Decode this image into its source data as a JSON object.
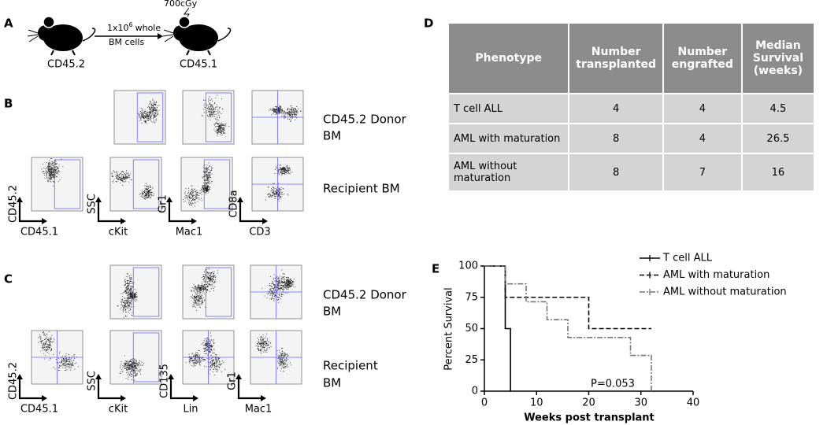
{
  "panel_a": {
    "label": "A",
    "donor": "CD45.2",
    "recipient": "CD45.1",
    "dose_base": "1x10",
    "dose_exp": "6",
    "dose_rest": "whole",
    "dose_line2": "BM cells",
    "irradiation": "700cGy"
  },
  "panel_b": {
    "label": "B",
    "donor_label": [
      "CD45.2 Donor",
      "BM"
    ],
    "recipient_label": "Recipient BM",
    "plots": [
      {
        "y": "CD45.2",
        "x": "CD45.1"
      },
      {
        "y": "SSC",
        "x": "cKit"
      },
      {
        "y": "Gr1",
        "x": "Mac1"
      },
      {
        "y": "CD8a",
        "x": "CD3"
      }
    ]
  },
  "panel_c": {
    "label": "C",
    "donor_label": [
      "CD45.2 Donor",
      "BM"
    ],
    "recipient_label": [
      "Recipient",
      "BM"
    ],
    "plots": [
      {
        "y": "CD45.2",
        "x": "CD45.1"
      },
      {
        "y": "SSC",
        "x": "cKit"
      },
      {
        "y": "CD135",
        "x": "Lin"
      },
      {
        "y": "Gr1",
        "x": "Mac1"
      }
    ]
  },
  "panel_d": {
    "label": "D",
    "table": {
      "header": [
        "Phenotype",
        "Number transplanted",
        "Number engrafted",
        "Median Survival (weeks)"
      ],
      "rows": [
        [
          "T cell ALL",
          "4",
          "4",
          "4.5"
        ],
        [
          "AML with maturation",
          "8",
          "4",
          "26.5"
        ],
        [
          "AML without maturation",
          "8",
          "7",
          "16"
        ]
      ]
    }
  },
  "chart_data": {
    "type": "survival",
    "panel_label": "E",
    "ylabel": "Percent Survival",
    "xlabel": "Weeks post transplant",
    "annotation": "P=0.053",
    "xlim": [
      0,
      40
    ],
    "ylim": [
      0,
      100
    ],
    "xticks": [
      0,
      10,
      20,
      30,
      40
    ],
    "yticks": [
      0,
      25,
      50,
      75,
      100
    ],
    "series": [
      {
        "name": "T cell ALL",
        "color": "#000000",
        "dash": "none",
        "x": [
          0,
          4,
          5
        ],
        "values": [
          100,
          50,
          0
        ]
      },
      {
        "name": "AML with maturation",
        "color": "#000000",
        "dash": "6 3",
        "x": [
          0,
          4,
          20,
          32
        ],
        "values": [
          100,
          75,
          50,
          50
        ]
      },
      {
        "name": "AML without maturation",
        "color": "#777777",
        "dash": "7 2 2 2",
        "x": [
          0,
          4,
          8,
          12,
          16,
          28,
          32
        ],
        "values": [
          100,
          85.7,
          71.4,
          57.1,
          42.9,
          28.6,
          0
        ]
      }
    ]
  }
}
